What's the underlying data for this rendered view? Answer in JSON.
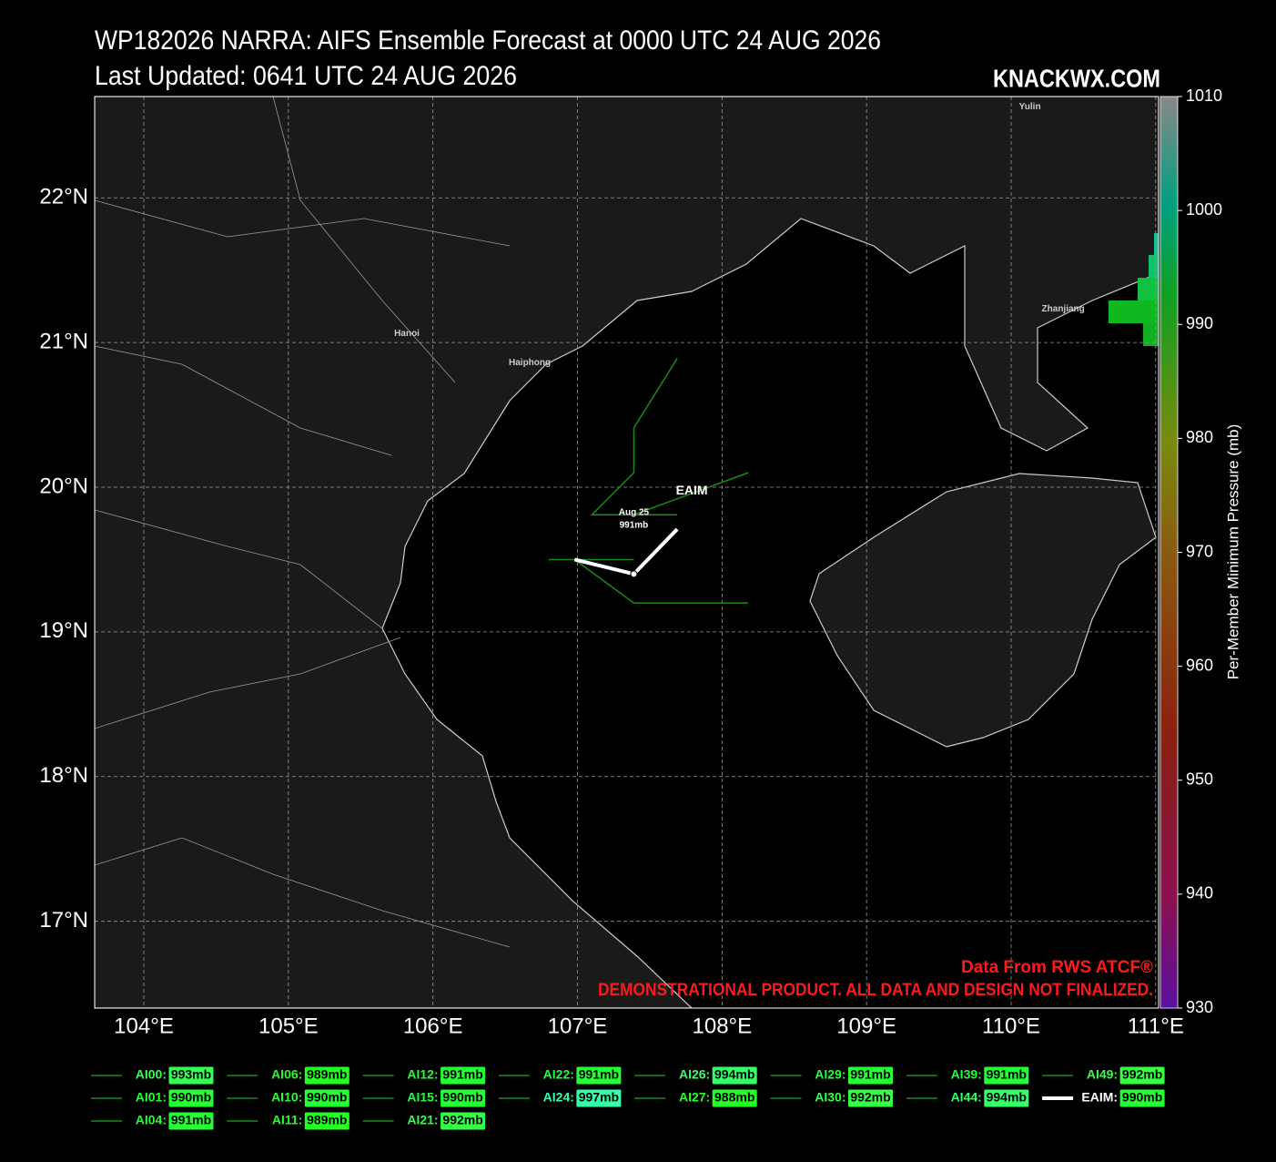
{
  "header": {
    "title": "WP182026 NARRA: AIFS Ensemble Forecast at 0000 UTC 24 AUG 2026",
    "updated": "Last Updated: 0641 UTC 24 AUG 2026",
    "brand": "KNACKWX.COM"
  },
  "map": {
    "xlim": [
      103.66,
      111.02
    ],
    "ylim": [
      16.4,
      22.7
    ],
    "xticks": [
      {
        "value": 104,
        "label": "104°E"
      },
      {
        "value": 105,
        "label": "105°E"
      },
      {
        "value": 106,
        "label": "106°E"
      },
      {
        "value": 107,
        "label": "107°E"
      },
      {
        "value": 108,
        "label": "108°E"
      },
      {
        "value": 109,
        "label": "109°E"
      },
      {
        "value": 110,
        "label": "110°E"
      },
      {
        "value": 111,
        "label": "111°E"
      }
    ],
    "yticks": [
      {
        "value": 17,
        "label": "17°N"
      },
      {
        "value": 18,
        "label": "18°N"
      },
      {
        "value": 19,
        "label": "19°N"
      },
      {
        "value": 20,
        "label": "20°N"
      },
      {
        "value": 21,
        "label": "21°N"
      },
      {
        "value": 22,
        "label": "22°N"
      }
    ],
    "cities": [
      {
        "name": "Hanoi",
        "lon": 105.82,
        "lat": 21.06
      },
      {
        "name": "Haiphong",
        "lon": 106.67,
        "lat": 20.86
      },
      {
        "name": "Zhanjiang",
        "lon": 110.36,
        "lat": 21.23
      },
      {
        "name": "Yulin",
        "lon": 110.13,
        "lat": 22.63
      }
    ],
    "tracks": [
      {
        "color": "#1a8a1a",
        "lon": [
          107.69,
          107.39,
          107.39,
          107.1,
          107.69
        ],
        "lat": [
          20.89,
          20.41,
          20.1,
          19.81,
          19.81
        ]
      },
      {
        "color": "#1a8a1a",
        "lon": [
          106.8,
          107.39
        ],
        "lat": [
          19.5,
          19.5
        ]
      },
      {
        "color": "#1a8a1a",
        "lon": [
          106.98,
          107.39,
          108.18
        ],
        "lat": [
          19.5,
          19.2,
          19.2
        ]
      },
      {
        "color": "#1a8a1a",
        "lon": [
          107.39,
          108.18
        ],
        "lat": [
          19.81,
          20.1
        ]
      },
      {
        "color": "#ffffff",
        "name": "EAIM",
        "lon": [
          106.98,
          107.39,
          107.69
        ],
        "lat": [
          19.5,
          19.4,
          19.71
        ]
      }
    ],
    "point_label": {
      "date": "Aug 25",
      "pressure": "991mb",
      "lon": 107.39,
      "lat": 19.78
    },
    "credit": "Data From RWS ATCF®",
    "disclaimer": "DEMONSTRATIONAL PRODUCT. ALL DATA AND DESIGN NOT FINALIZED."
  },
  "colorbar": {
    "label": "Per-Member Minimum Pressure (mb)",
    "lim": [
      930,
      1010
    ],
    "ticks": [
      930,
      940,
      950,
      960,
      970,
      980,
      990,
      1000,
      1010
    ]
  },
  "legend": [
    [
      {
        "name": "AI00:",
        "pressure": "993mb",
        "color": "#33ff55"
      },
      {
        "name": "AI01:",
        "pressure": "990mb",
        "color": "#22ff33"
      },
      {
        "name": "AI04:",
        "pressure": "991mb",
        "color": "#22ff33"
      }
    ],
    [
      {
        "name": "AI06:",
        "pressure": "989mb",
        "color": "#22ff22"
      },
      {
        "name": "AI10:",
        "pressure": "990mb",
        "color": "#22ff33"
      },
      {
        "name": "AI11:",
        "pressure": "989mb",
        "color": "#22ff22"
      }
    ],
    [
      {
        "name": "AI12:",
        "pressure": "991mb",
        "color": "#22ff33"
      },
      {
        "name": "AI15:",
        "pressure": "990mb",
        "color": "#22ff33"
      },
      {
        "name": "AI21:",
        "pressure": "992mb",
        "color": "#33ff44"
      }
    ],
    [
      {
        "name": "AI22:",
        "pressure": "991mb",
        "color": "#22ff33"
      },
      {
        "name": "AI24:",
        "pressure": "997mb",
        "color": "#33ffaa"
      }
    ],
    [
      {
        "name": "AI26:",
        "pressure": "994mb",
        "color": "#33ff66"
      },
      {
        "name": "AI27:",
        "pressure": "988mb",
        "color": "#22ff22"
      }
    ],
    [
      {
        "name": "AI29:",
        "pressure": "991mb",
        "color": "#22ff33"
      },
      {
        "name": "AI30:",
        "pressure": "992mb",
        "color": "#33ff44"
      }
    ],
    [
      {
        "name": "AI39:",
        "pressure": "991mb",
        "color": "#22ff33"
      },
      {
        "name": "AI44:",
        "pressure": "994mb",
        "color": "#33ff66"
      }
    ],
    [
      {
        "name": "AI49:",
        "pressure": "992mb",
        "color": "#33ff44"
      },
      {
        "name": "EAIM:",
        "pressure": "990mb",
        "color": "#22ff33"
      }
    ]
  ]
}
